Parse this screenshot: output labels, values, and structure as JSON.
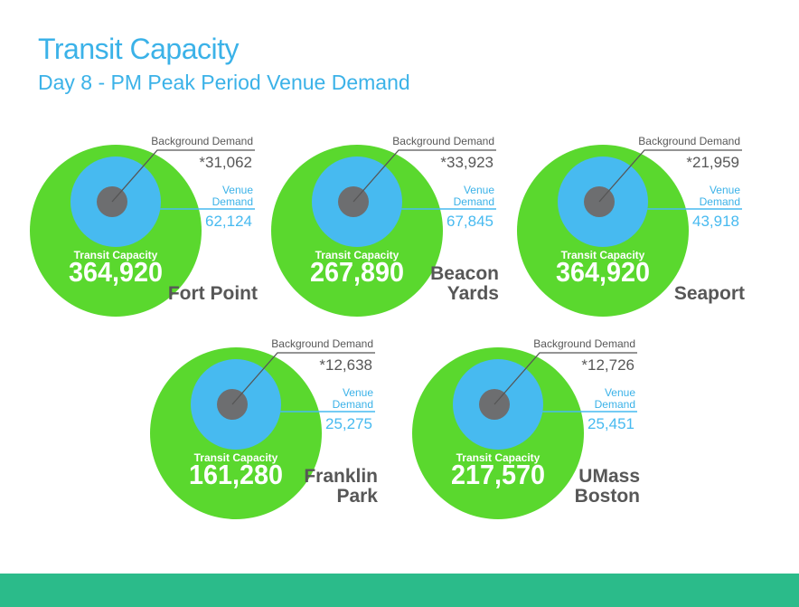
{
  "page": {
    "title": "Transit Capacity",
    "subtitle": "Day 8 - PM Peak Period Venue Demand"
  },
  "labels": {
    "background_demand": "Background Demand",
    "venue_line1": "Venue",
    "venue_line2": "Demand",
    "transit_capacity": "Transit Capacity"
  },
  "colors": {
    "title": "#3bb2e8",
    "outer_circle": "#5ad82e",
    "inner_circle": "#47baf0",
    "core_circle": "#6d6e70",
    "text_dark": "#575757",
    "venue_text": "#3bb2e8",
    "footer": "#2bbb8a"
  },
  "venues": [
    {
      "name_lines": [
        "Fort Point"
      ],
      "transit_capacity": "364,920",
      "background_demand": "*31,062",
      "venue_demand": "62,124"
    },
    {
      "name_lines": [
        "Beacon",
        "Yards"
      ],
      "transit_capacity": "267,890",
      "background_demand": "*33,923",
      "venue_demand": "67,845"
    },
    {
      "name_lines": [
        "Seaport"
      ],
      "transit_capacity": "364,920",
      "background_demand": "*21,959",
      "venue_demand": "43,918"
    },
    {
      "name_lines": [
        "Franklin",
        "Park"
      ],
      "transit_capacity": "161,280",
      "background_demand": "*12,638",
      "venue_demand": "25,275"
    },
    {
      "name_lines": [
        "UMass",
        "Boston"
      ],
      "transit_capacity": "217,570",
      "background_demand": "*12,726",
      "venue_demand": "25,451"
    }
  ]
}
